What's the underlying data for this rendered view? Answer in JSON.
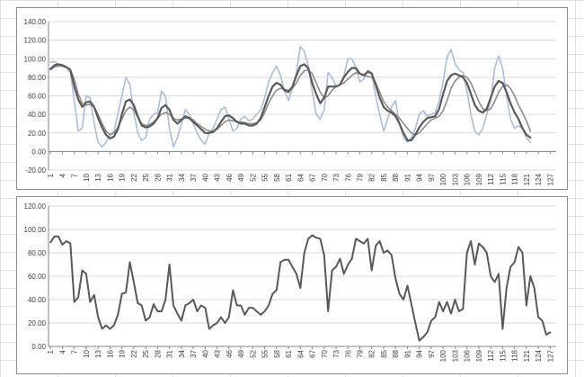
{
  "colors": {
    "gridline": "#d9d9d9",
    "axis": "#868686",
    "dark_series": "#595959",
    "smooth_series": "#8c8c8c",
    "light_series": "#a6bfe0"
  },
  "chart_data": [
    {
      "type": "line",
      "ylim": [
        -20,
        140
      ],
      "y_ticks": [
        "140.00",
        "120.00",
        "100.00",
        "80.00",
        "60.00",
        "40.00",
        "20.00",
        "0.00",
        "-20.00"
      ],
      "x_ticks": [
        "1",
        "4",
        "7",
        "10",
        "13",
        "16",
        "19",
        "22",
        "25",
        "28",
        "31",
        "34",
        "37",
        "40",
        "43",
        "46",
        "49",
        "52",
        "55",
        "58",
        "61",
        "64",
        "67",
        "70",
        "73",
        "76",
        "79",
        "82",
        "85",
        "88",
        "91",
        "94",
        "97",
        "100",
        "103",
        "106",
        "109",
        "112",
        "115",
        "118",
        "121",
        "124",
        "127"
      ],
      "grid": true,
      "series": [
        {
          "color": "#a6bfe0",
          "width": 1.6,
          "values": [
            96,
            97,
            94,
            92,
            90,
            85,
            55,
            22,
            25,
            60,
            58,
            30,
            10,
            5,
            10,
            18,
            22,
            40,
            60,
            80,
            72,
            42,
            20,
            12,
            15,
            35,
            40,
            42,
            65,
            60,
            25,
            5,
            15,
            30,
            45,
            40,
            30,
            20,
            12,
            8,
            20,
            25,
            35,
            45,
            48,
            35,
            22,
            25,
            35,
            38,
            33,
            35,
            40,
            45,
            58,
            75,
            85,
            92,
            82,
            65,
            55,
            68,
            85,
            113,
            108,
            92,
            65,
            40,
            35,
            45,
            85,
            80,
            70,
            72,
            82,
            100,
            100,
            90,
            75,
            78,
            88,
            85,
            60,
            40,
            22,
            35,
            48,
            55,
            30,
            15,
            10,
            15,
            25,
            40,
            44,
            38,
            40,
            42,
            55,
            75,
            102,
            110,
            95,
            88,
            85,
            65,
            40,
            22,
            18,
            25,
            40,
            55,
            90,
            103,
            90,
            60,
            35,
            25,
            28,
            25,
            15,
            10
          ]
        },
        {
          "color": "#8c8c8c",
          "width": 1.6,
          "values": [
            88,
            91,
            92,
            92,
            91,
            88,
            78,
            62,
            52,
            50,
            51,
            48,
            40,
            30,
            22,
            18,
            20,
            26,
            35,
            44,
            48,
            45,
            37,
            30,
            28,
            29,
            32,
            36,
            40,
            42,
            40,
            36,
            34,
            35,
            36,
            36,
            34,
            30,
            27,
            24,
            22,
            22,
            24,
            28,
            32,
            34,
            33,
            32,
            32,
            31,
            30,
            30,
            31,
            34,
            42,
            52,
            60,
            66,
            68,
            67,
            66,
            68,
            74,
            82,
            87,
            88,
            84,
            74,
            64,
            58,
            60,
            66,
            70,
            72,
            74,
            78,
            82,
            85,
            84,
            82,
            81,
            80,
            74,
            64,
            54,
            48,
            44,
            40,
            36,
            30,
            25,
            20,
            18,
            20,
            25,
            30,
            34,
            36,
            38,
            44,
            55,
            68,
            76,
            80,
            82,
            80,
            74,
            64,
            54,
            46,
            44,
            46,
            54,
            64,
            70,
            72,
            68,
            60,
            50,
            42,
            33,
            22
          ]
        },
        {
          "color": "#595959",
          "width": 2.2,
          "values": [
            89,
            93,
            94,
            93,
            91,
            88,
            70,
            56,
            48,
            53,
            54,
            48,
            36,
            26,
            18,
            14,
            16,
            24,
            40,
            54,
            56,
            50,
            38,
            28,
            26,
            27,
            30,
            36,
            47,
            50,
            45,
            34,
            30,
            34,
            38,
            36,
            32,
            28,
            24,
            20,
            20,
            21,
            25,
            32,
            38,
            39,
            36,
            32,
            30,
            30,
            28,
            28,
            30,
            36,
            48,
            60,
            70,
            74,
            72,
            66,
            64,
            70,
            82,
            92,
            94,
            90,
            74,
            62,
            52,
            58,
            70,
            70,
            70,
            72,
            80,
            86,
            90,
            90,
            84,
            82,
            86,
            84,
            72,
            58,
            48,
            44,
            42,
            38,
            30,
            20,
            12,
            12,
            18,
            26,
            32,
            36,
            37,
            38,
            46,
            62,
            76,
            82,
            84,
            82,
            80,
            74,
            62,
            50,
            44,
            42,
            46,
            58,
            70,
            76,
            74,
            64,
            52,
            42,
            35,
            25,
            18,
            15
          ]
        }
      ]
    },
    {
      "type": "line",
      "ylim": [
        0,
        120
      ],
      "y_ticks": [
        "120.00",
        "100.00",
        "80.00",
        "60.00",
        "40.00",
        "20.00",
        "0.00"
      ],
      "x_ticks": [
        "1",
        "4",
        "7",
        "10",
        "13",
        "16",
        "19",
        "22",
        "25",
        "28",
        "31",
        "34",
        "37",
        "40",
        "43",
        "46",
        "49",
        "52",
        "55",
        "58",
        "61",
        "64",
        "67",
        "70",
        "73",
        "76",
        "79",
        "82",
        "85",
        "88",
        "91",
        "94",
        "97",
        "100",
        "103",
        "106",
        "109",
        "112",
        "115",
        "118",
        "121",
        "124",
        "127"
      ],
      "grid": true,
      "series": [
        {
          "color": "#595959",
          "width": 2,
          "values": [
            89,
            94,
            94,
            87,
            90,
            88,
            38,
            42,
            65,
            62,
            38,
            44,
            25,
            15,
            18,
            15,
            18,
            27,
            45,
            46,
            72,
            55,
            37,
            35,
            22,
            25,
            36,
            30,
            30,
            40,
            70,
            35,
            28,
            22,
            35,
            37,
            40,
            30,
            35,
            33,
            15,
            18,
            20,
            25,
            20,
            25,
            48,
            35,
            35,
            27,
            33,
            33,
            30,
            27,
            30,
            35,
            45,
            48,
            72,
            74,
            74,
            68,
            62,
            50,
            80,
            92,
            95,
            93,
            92,
            78,
            30,
            65,
            68,
            75,
            62,
            70,
            75,
            92,
            90,
            88,
            92,
            65,
            86,
            90,
            80,
            82,
            78,
            58,
            45,
            40,
            52,
            36,
            20,
            5,
            8,
            12,
            22,
            25,
            38,
            30,
            38,
            28,
            40,
            30,
            32,
            80,
            90,
            70,
            88,
            85,
            80,
            60,
            55,
            62,
            15,
            50,
            68,
            72,
            85,
            80,
            35,
            60,
            50,
            25,
            22,
            10,
            12
          ]
        }
      ]
    }
  ]
}
